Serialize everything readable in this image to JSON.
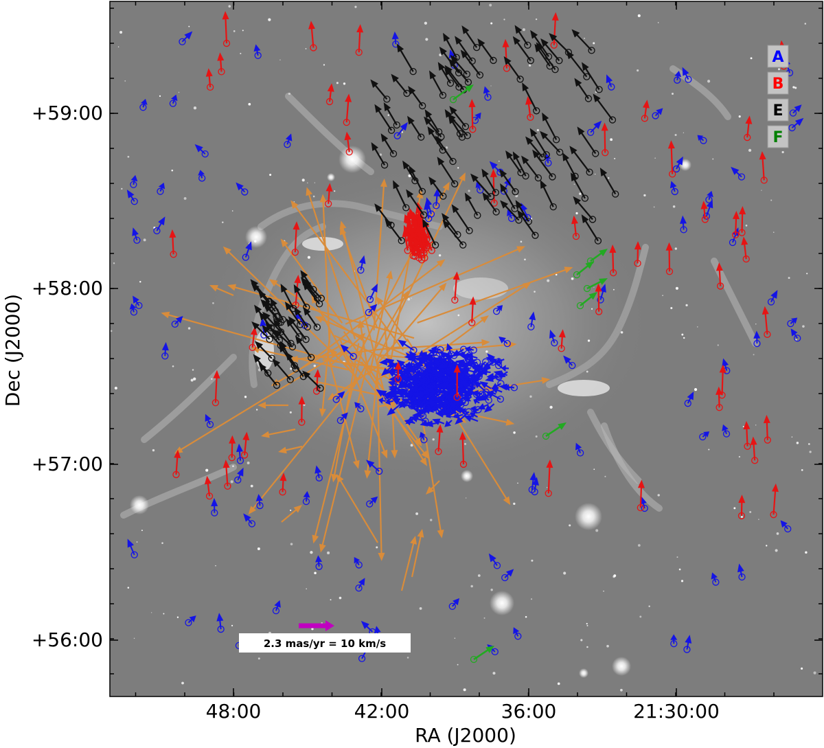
{
  "figure": {
    "xlabel": "RA (J2000)",
    "ylabel": "Dec (J2000)",
    "x_ticks": [
      "48:00",
      "42:00",
      "36:00",
      "21:30:00"
    ],
    "y_ticks": [
      "+59:00",
      "+58:00",
      "+57:00",
      "+56:00"
    ]
  },
  "legend": [
    {
      "label": "A",
      "color": "#0000ff"
    },
    {
      "label": "B",
      "color": "#ff0000"
    },
    {
      "label": "E",
      "color": "#000000"
    },
    {
      "label": "F",
      "color": "#008000"
    }
  ],
  "scale_bar": {
    "text": "2.3 mas/yr = 10 km/s",
    "color": "#c000c0"
  },
  "colors": {
    "group_A": "#1414e6",
    "group_B": "#e61414",
    "group_E": "#111111",
    "group_F": "#22aa22",
    "other": "#d98c3a",
    "background": "#7d7d7d"
  }
}
